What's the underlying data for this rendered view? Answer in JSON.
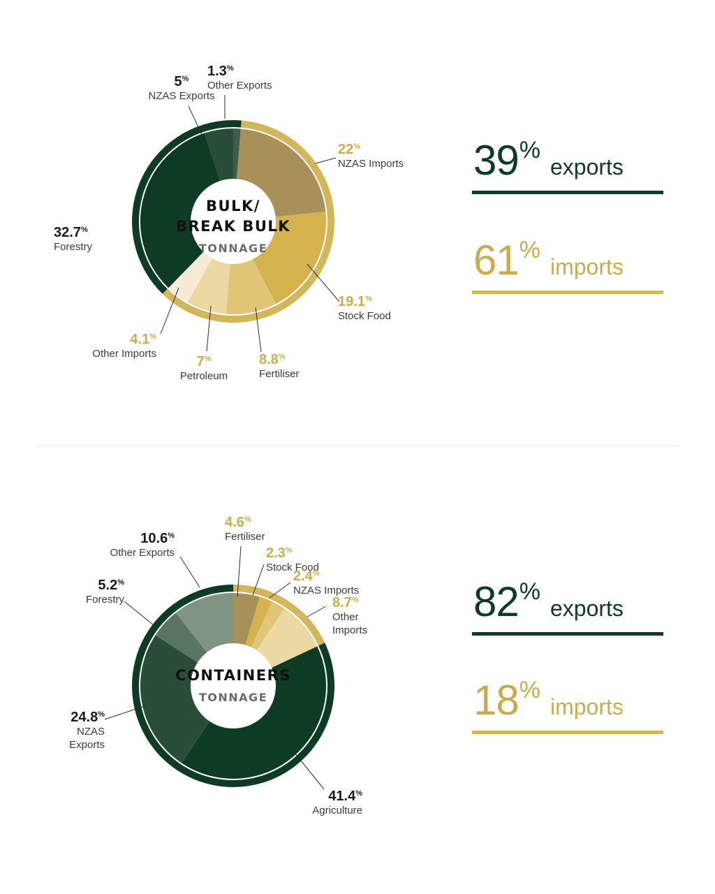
{
  "colors": {
    "export_ring": "#0d3b24",
    "import_ring": "#d2b65a",
    "export_label": "#1a1a1a",
    "import_label": "#c9ac4c",
    "caption": "#3a3a3a",
    "title": "#111111",
    "subtitle": "#6b6b6b"
  },
  "chart_data": [
    {
      "type": "pie",
      "variant": "donut",
      "title": "BULK/ BREAK BULK",
      "title_lines": [
        "BULK/",
        "BREAK BULK"
      ],
      "subtitle": "TONNAGE",
      "unit": "%",
      "series": [
        {
          "name": "Other Exports",
          "value": 1.3,
          "group": "exports",
          "color": "#3e5c48"
        },
        {
          "name": "NZAS Imports",
          "value": 22,
          "group": "imports",
          "color": "#a89158"
        },
        {
          "name": "Stock Food",
          "value": 19.1,
          "group": "imports",
          "color": "#d4b24e"
        },
        {
          "name": "Fertiliser",
          "value": 8.8,
          "group": "imports",
          "color": "#e1c678"
        },
        {
          "name": "Petroleum",
          "value": 7,
          "group": "imports",
          "color": "#ecd8a2"
        },
        {
          "name": "Other Imports",
          "value": 4.1,
          "group": "imports",
          "color": "#f6ecd6"
        },
        {
          "name": "Forestry",
          "value": 32.7,
          "group": "exports",
          "color": "#0d3b24"
        },
        {
          "name": "NZAS Exports",
          "value": 5,
          "group": "exports",
          "color": "#2a4d38"
        }
      ],
      "summary": [
        {
          "value": "39",
          "label": "exports",
          "group": "exports"
        },
        {
          "value": "61",
          "label": "imports",
          "group": "imports"
        }
      ]
    },
    {
      "type": "pie",
      "variant": "donut",
      "title": "CONTAINERS",
      "title_lines": [
        "CONTAINERS"
      ],
      "subtitle": "TONNAGE",
      "unit": "%",
      "series": [
        {
          "name": "Fertiliser",
          "value": 4.6,
          "group": "imports",
          "color": "#a89158"
        },
        {
          "name": "Stock Food",
          "value": 2.3,
          "group": "imports",
          "color": "#d4b24e"
        },
        {
          "name": "NZAS Imports",
          "value": 2.4,
          "group": "imports",
          "color": "#e1c678"
        },
        {
          "name": "Other Imports",
          "value": 8.7,
          "group": "imports",
          "color": "#ecd8a2"
        },
        {
          "name": "Agriculture",
          "value": 41.4,
          "group": "exports",
          "color": "#0d3b24"
        },
        {
          "name": "NZAS Exports",
          "value": 24.8,
          "group": "exports",
          "color": "#2a4d38"
        },
        {
          "name": "Forestry",
          "value": 5.2,
          "group": "exports",
          "color": "#5a7462"
        },
        {
          "name": "Other Exports",
          "value": 10.6,
          "group": "exports",
          "color": "#7f9483"
        }
      ],
      "summary": [
        {
          "value": "82",
          "label": "exports",
          "group": "exports"
        },
        {
          "value": "18",
          "label": "imports",
          "group": "imports"
        }
      ]
    }
  ],
  "percent_sign": "%",
  "labels": [
    [
      {
        "value": "5",
        "lines": [
          "NZAS Exports"
        ]
      },
      {
        "value": "1.3",
        "lines": [
          "Other Exports"
        ]
      },
      {
        "value": "22",
        "lines": [
          "NZAS Imports"
        ]
      },
      {
        "value": "32.7",
        "lines": [
          "Forestry"
        ]
      },
      {
        "value": "19.1",
        "lines": [
          "Stock Food"
        ]
      },
      {
        "value": "4.1",
        "lines": [
          "Other Imports"
        ]
      },
      {
        "value": "7",
        "lines": [
          "Petroleum"
        ]
      },
      {
        "value": "8.8",
        "lines": [
          "Fertiliser"
        ]
      }
    ],
    [
      {
        "value": "10.6",
        "lines": [
          "Other Exports"
        ]
      },
      {
        "value": "4.6",
        "lines": [
          "Fertiliser"
        ]
      },
      {
        "value": "2.3",
        "lines": [
          "Stock Food"
        ]
      },
      {
        "value": "2.4",
        "lines": [
          "NZAS Imports"
        ]
      },
      {
        "value": "8.7",
        "lines": [
          "Other",
          "Imports"
        ]
      },
      {
        "value": "5.2",
        "lines": [
          "Forestry"
        ]
      },
      {
        "value": "24.8",
        "lines": [
          "NZAS",
          "Exports"
        ]
      },
      {
        "value": "41.4",
        "lines": [
          "Agriculture"
        ]
      }
    ]
  ]
}
